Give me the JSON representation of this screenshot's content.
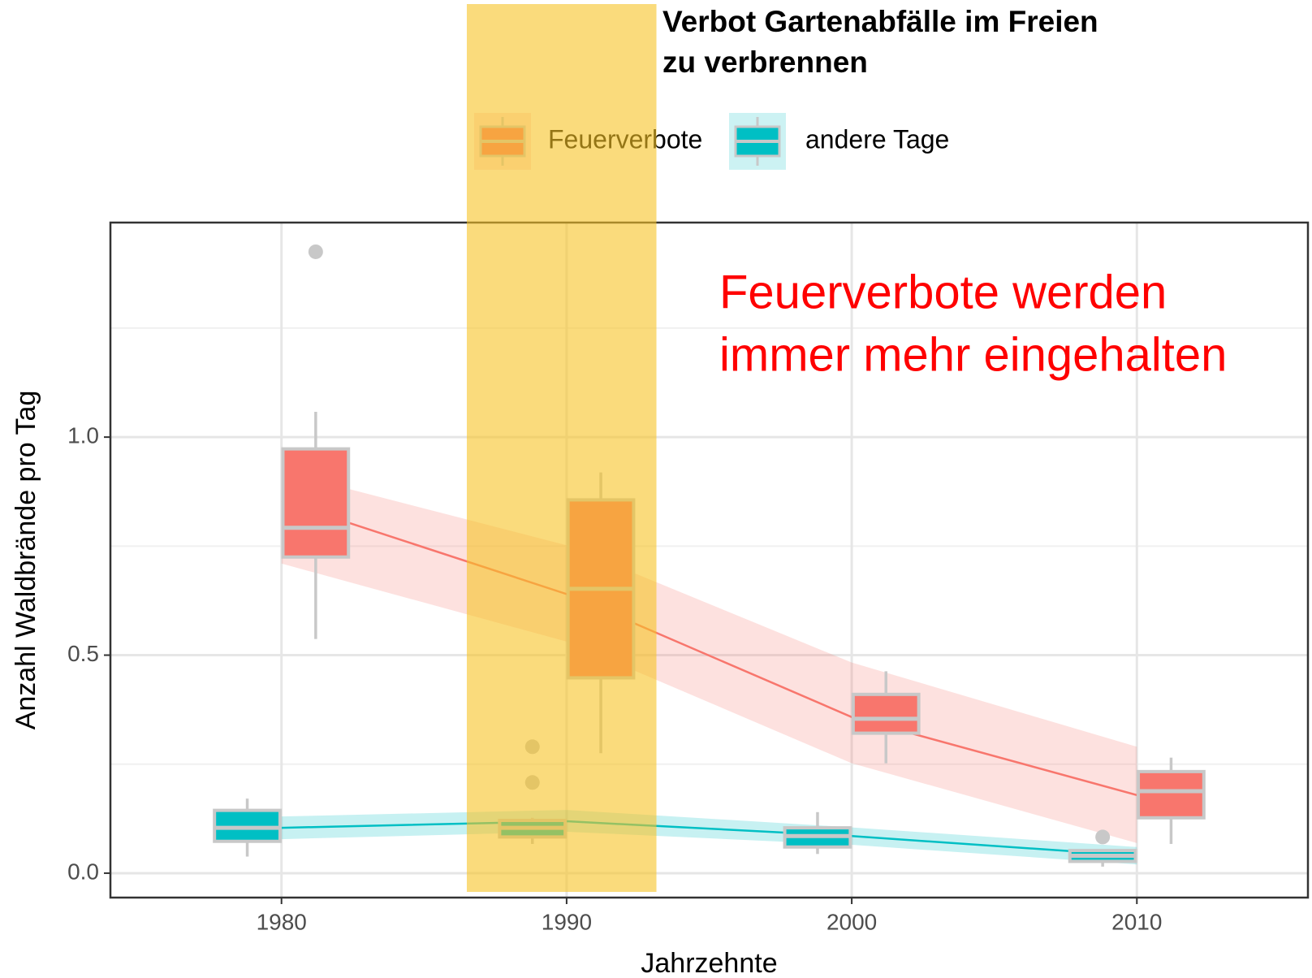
{
  "chart_data": {
    "type": "boxplot",
    "title": [
      "Verbot Gartenabfälle im Freien",
      "zu verbrennen"
    ],
    "annotation": [
      "Feuerverbote werden",
      "immer mehr eingehalten"
    ],
    "xlabel": "Jahrzehnte",
    "ylabel": "Anzahl Waldbrände pro Tag",
    "xlim": [
      1974,
      2016
    ],
    "xticks": [
      1980,
      1990,
      2000,
      2010
    ],
    "ylim": [
      -0.056,
      1.492
    ],
    "yticks": [
      {
        "value": 0,
        "label": "0.0"
      },
      {
        "value": 0.5,
        "label": "0.5"
      },
      {
        "value": 1,
        "label": "1.0"
      }
    ],
    "minor_yticks": [
      0.25,
      0.75,
      1.25
    ],
    "grid": true,
    "legend": "top",
    "highlight": {
      "x": [
        1986.5,
        1993.15
      ],
      "color": "#f7c325"
    },
    "trend_x": [
      1980,
      1990,
      2000,
      2010
    ],
    "series": [
      {
        "name": "Feuerverbote",
        "color": "#f8766d",
        "boxes": [
          {
            "x": 1981.2,
            "whisker_low": 0.537,
            "q1": 0.725,
            "median": 0.792,
            "q3": 0.973,
            "whisker_high": 1.058,
            "outliers": [
              1.425
            ]
          },
          {
            "x": 1991.2,
            "whisker_low": 0.275,
            "q1": 0.448,
            "median": 0.652,
            "q3": 0.856,
            "whisker_high": 0.919,
            "outliers": []
          },
          {
            "x": 2001.2,
            "whisker_low": 0.252,
            "q1": 0.321,
            "median": 0.354,
            "q3": 0.41,
            "whisker_high": 0.463,
            "outliers": []
          },
          {
            "x": 2011.2,
            "whisker_low": 0.067,
            "q1": 0.127,
            "median": 0.188,
            "q3": 0.233,
            "whisker_high": 0.265,
            "outliers": []
          }
        ],
        "trend": [
          0.854,
          0.64,
          0.358,
          0.179
        ],
        "lower": [
          0.71,
          0.531,
          0.252,
          0.069
        ],
        "upper": [
          0.921,
          0.752,
          0.483,
          0.29
        ]
      },
      {
        "name": "andere Tage",
        "color": "#00bfc4",
        "boxes": [
          {
            "x": 1978.8,
            "whisker_low": 0.038,
            "q1": 0.073,
            "median": 0.104,
            "q3": 0.144,
            "whisker_high": 0.171,
            "outliers": []
          },
          {
            "x": 1988.8,
            "whisker_low": 0.067,
            "q1": 0.083,
            "median": 0.104,
            "q3": 0.121,
            "whisker_high": 0.127,
            "outliers": [
              0.29,
              0.208
            ]
          },
          {
            "x": 1998.8,
            "whisker_low": 0.044,
            "q1": 0.06,
            "median": 0.085,
            "q3": 0.104,
            "whisker_high": 0.14,
            "outliers": []
          },
          {
            "x": 2008.8,
            "whisker_low": 0.015,
            "q1": 0.027,
            "median": 0.04,
            "q3": 0.052,
            "whisker_high": 0.055,
            "outliers": [
              0.083
            ]
          }
        ],
        "trend": [
          0.104,
          0.119,
          0.085,
          0.04
        ],
        "lower": [
          0.078,
          0.095,
          0.065,
          0.02
        ],
        "upper": [
          0.13,
          0.145,
          0.105,
          0.06
        ]
      }
    ]
  }
}
